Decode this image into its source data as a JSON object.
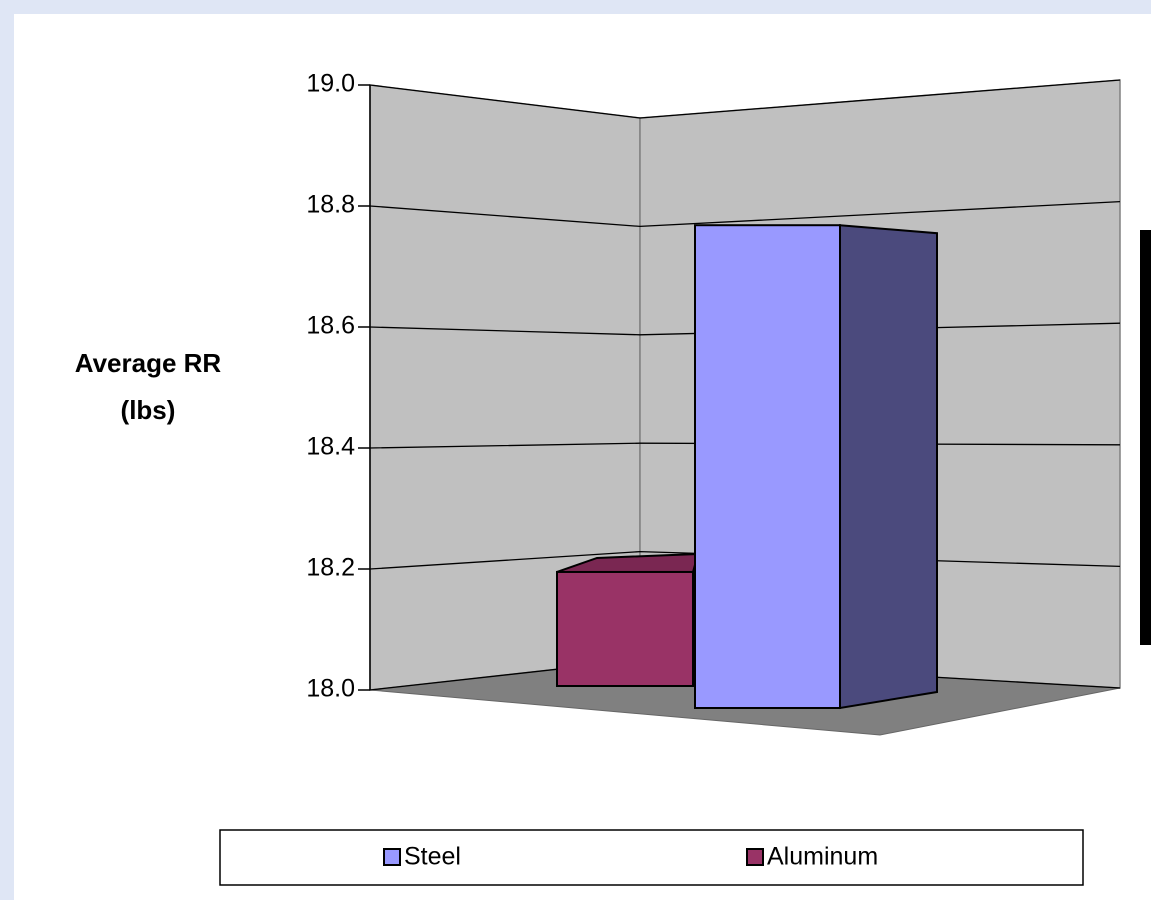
{
  "chart_data": {
    "type": "bar3d",
    "ylabel": [
      "Average RR",
      "(lbs)"
    ],
    "series": [
      {
        "name": "Steel",
        "color": "#9999ff",
        "side_color": "#4b4a7d",
        "values": [
          18.77
        ]
      },
      {
        "name": "Aluminum",
        "color": "#993366",
        "side_color": "#7a2752",
        "values": [
          18.21
        ]
      }
    ],
    "ylim": [
      18,
      19
    ],
    "yticks": [
      {
        "value": 18,
        "label": "18.0"
      },
      18.2,
      18.4,
      18.6,
      18.8,
      {
        "value": 19,
        "label": "19.0"
      }
    ],
    "grid": true,
    "legend": "bottom"
  }
}
